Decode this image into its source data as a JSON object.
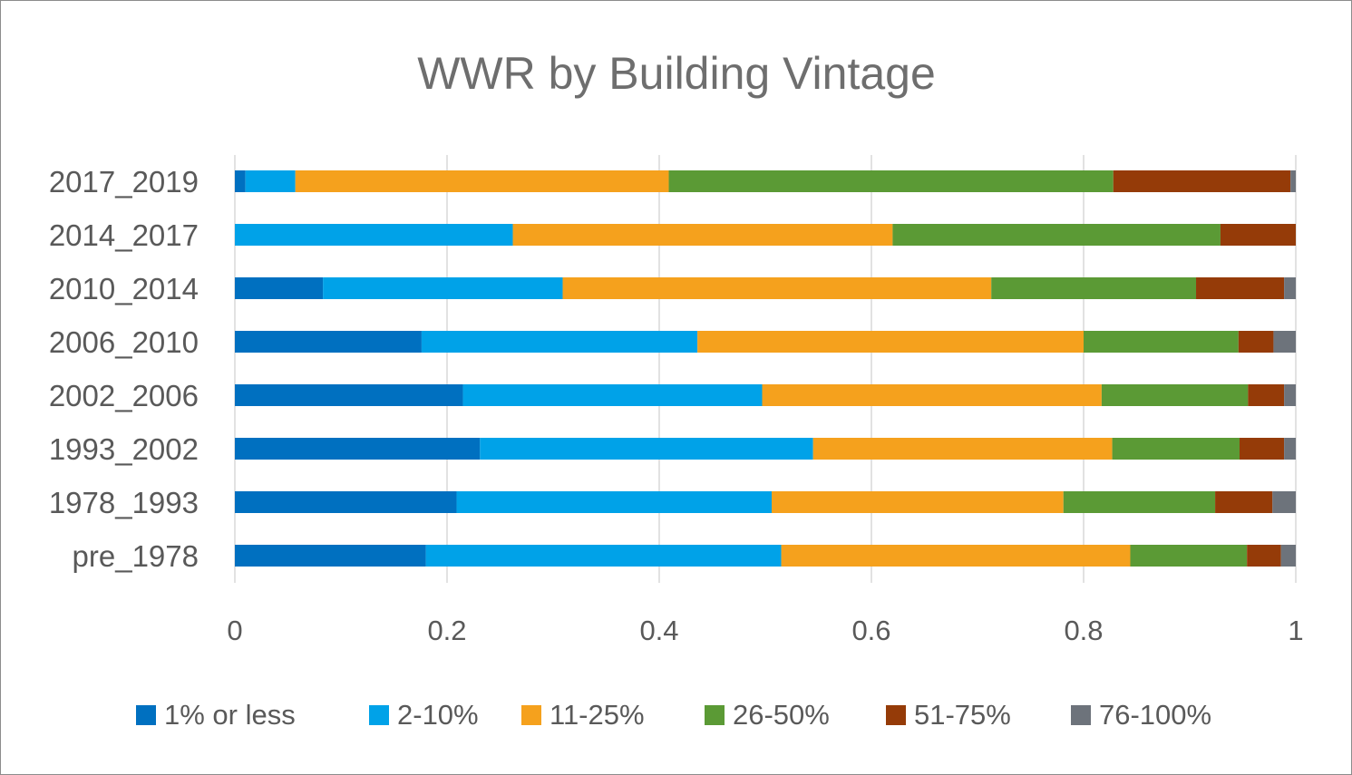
{
  "chart_data": {
    "type": "bar",
    "orientation": "horizontal",
    "stacked": true,
    "title": "WWR by Building Vintage",
    "categories": [
      "2017_2019",
      "2014_2017",
      "2010_2014",
      "2006_2010",
      "2002_2006",
      "1993_2002",
      "1978_1993",
      "pre_1978"
    ],
    "series": [
      {
        "name": "1% or less",
        "color": "#0070c0",
        "values": [
          0.01,
          0.0,
          0.083,
          0.176,
          0.215,
          0.231,
          0.209,
          0.18
        ]
      },
      {
        "name": "2-10%",
        "color": "#00a2e8",
        "values": [
          0.047,
          0.262,
          0.226,
          0.26,
          0.282,
          0.314,
          0.297,
          0.335
        ]
      },
      {
        "name": "11-25%",
        "color": "#f5a11d",
        "values": [
          0.352,
          0.358,
          0.404,
          0.364,
          0.32,
          0.282,
          0.275,
          0.329
        ]
      },
      {
        "name": "26-50%",
        "color": "#5b9a35",
        "values": [
          0.419,
          0.309,
          0.193,
          0.146,
          0.138,
          0.12,
          0.143,
          0.11
        ]
      },
      {
        "name": "51-75%",
        "color": "#953b08",
        "values": [
          0.167,
          0.071,
          0.083,
          0.033,
          0.034,
          0.042,
          0.054,
          0.032
        ]
      },
      {
        "name": "76-100%",
        "color": "#6d737b",
        "values": [
          0.005,
          0.0,
          0.011,
          0.021,
          0.011,
          0.011,
          0.022,
          0.014
        ]
      }
    ],
    "x_ticks": [
      "0",
      "0.2",
      "0.4",
      "0.6",
      "0.8",
      "1"
    ],
    "xlim": [
      0,
      1
    ],
    "grid": "vertical",
    "legend": "bottom"
  }
}
